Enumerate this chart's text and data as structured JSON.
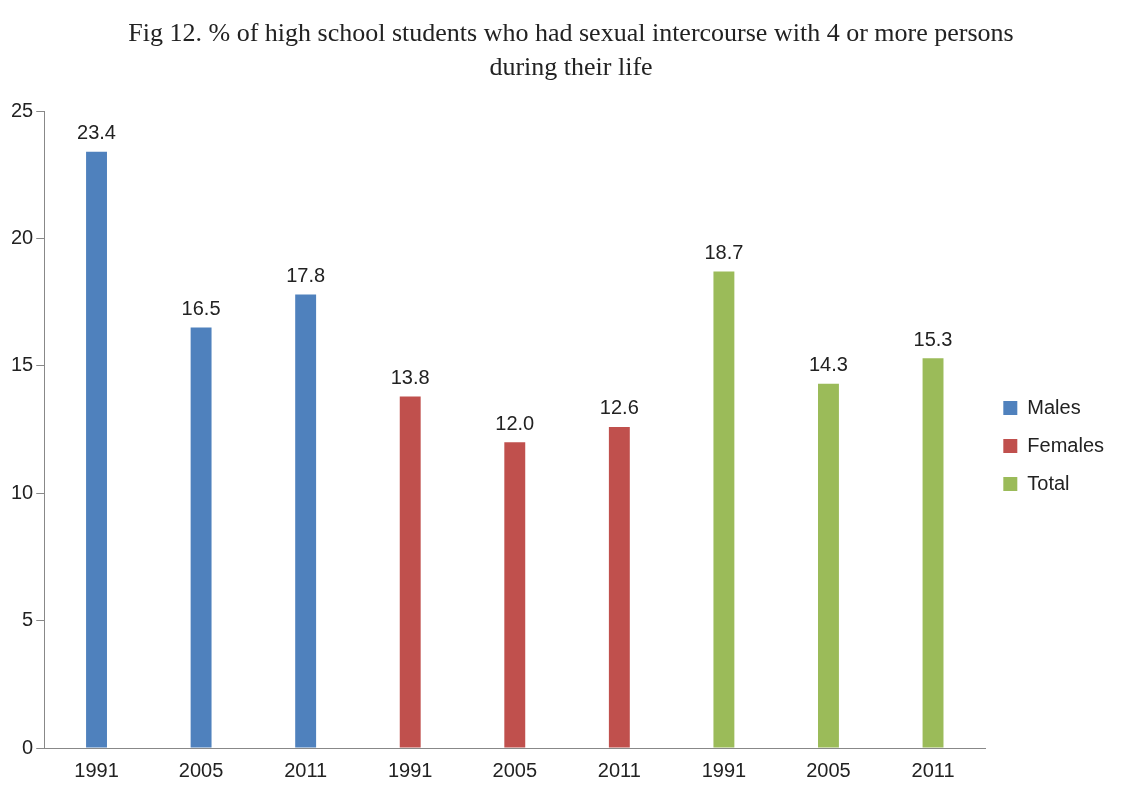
{
  "chart_data": {
    "type": "bar",
    "title": "Fig 12. % of high school students who had sexual intercourse with 4 or more persons during their life",
    "categories": [
      "1991",
      "2005",
      "2011",
      "1991",
      "2005",
      "2011",
      "1991",
      "2005",
      "2011"
    ],
    "series": [
      {
        "name": "Males",
        "color": "#4f81bd",
        "values": [
          23.4,
          16.5,
          17.8,
          null,
          null,
          null,
          null,
          null,
          null
        ],
        "value_labels": [
          "23.4",
          "16.5",
          "17.8",
          null,
          null,
          null,
          null,
          null,
          null
        ]
      },
      {
        "name": "Females",
        "color": "#c0504d",
        "values": [
          null,
          null,
          null,
          13.8,
          12.0,
          12.6,
          null,
          null,
          null
        ],
        "value_labels": [
          null,
          null,
          null,
          "13.8",
          "12.0",
          "12.6",
          null,
          null,
          null
        ]
      },
      {
        "name": "Total",
        "color": "#9bbb59",
        "values": [
          null,
          null,
          null,
          null,
          null,
          null,
          18.7,
          14.3,
          15.3
        ],
        "value_labels": [
          null,
          null,
          null,
          null,
          null,
          null,
          "18.7",
          "14.3",
          "15.3"
        ]
      }
    ],
    "ylim": [
      0,
      25
    ],
    "yticks": [
      0,
      5,
      10,
      15,
      20,
      25
    ],
    "grid": false,
    "legend": "right"
  }
}
